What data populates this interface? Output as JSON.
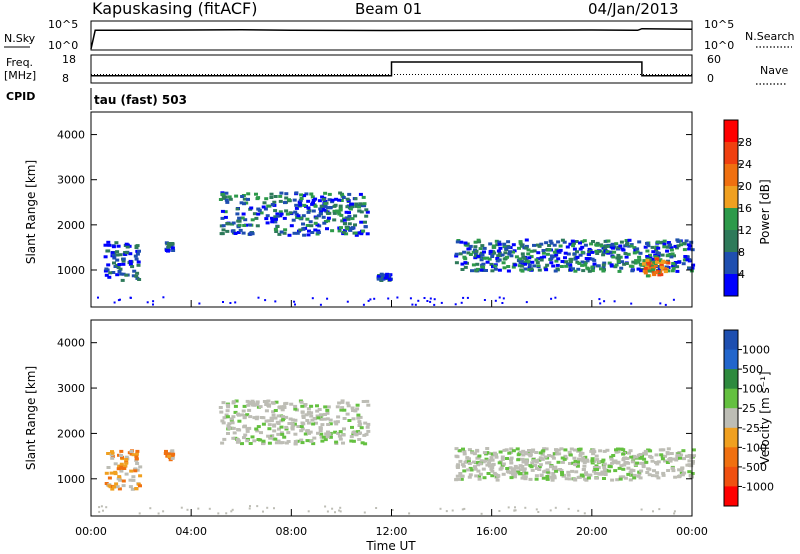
{
  "header": {
    "station": "Kapuskasing (fitACF)",
    "beam": "Beam 01",
    "date": "04/Jan/2013"
  },
  "noise_panel": {
    "left_label": "N.Sky",
    "left_ticks": [
      "10^5",
      "10^0"
    ],
    "right_ticks": [
      "10^5",
      "10^0"
    ],
    "right_label": "N.Search"
  },
  "freq_panel": {
    "left_label_1": "Freq.",
    "left_label_2": "[MHz]",
    "left_ticks": [
      "18",
      "8"
    ],
    "right_ticks": [
      "60",
      "0"
    ],
    "right_label": "Nave"
  },
  "cpid": {
    "label": "CPID",
    "mode": "tau (fast) 503"
  },
  "colors": {
    "power_scale": [
      "#0000ff",
      "#1f4fb0",
      "#2e7a5a",
      "#2d9a4a",
      "#f0a020",
      "#f07010",
      "#f04010",
      "#ff0000"
    ],
    "velocity_scale": [
      "#1e4fb0",
      "#2266cc",
      "#2e8a3e",
      "#64c040",
      "#bdbdb5",
      "#f0a020",
      "#f07010",
      "#f05010",
      "#ff0000"
    ]
  },
  "chart_data": [
    {
      "type": "line",
      "panel": "noise",
      "series": [
        {
          "name": "N.Sky",
          "x": [
            "00:00",
            "00:10",
            "04:00",
            "06:00",
            "08:00",
            "12:00",
            "16:00",
            "20:00",
            "21:50",
            "22:00",
            "24:00"
          ],
          "y_log10": [
            0,
            3.6,
            3.65,
            3.7,
            3.6,
            3.55,
            3.6,
            3.65,
            3.6,
            3.9,
            3.8
          ]
        },
        {
          "name": "N.Search",
          "x": [
            "00:00",
            "24:00"
          ],
          "y_log10": [
            0,
            0
          ]
        }
      ]
    },
    {
      "type": "line",
      "panel": "frequency",
      "series": [
        {
          "name": "Freq.",
          "x": [
            "00:00",
            "12:00",
            "12:00",
            "22:00",
            "22:00",
            "24:00"
          ],
          "y": [
            10.5,
            10.5,
            16,
            16,
            10.5,
            10.5
          ]
        },
        {
          "name": "Nave",
          "x": [
            "00:00",
            "24:00"
          ],
          "y": [
            18,
            18
          ]
        }
      ]
    },
    {
      "type": "heatmap",
      "panel": "power",
      "xlabel": "",
      "ylabel": "Slant Range [km]",
      "yticks": [
        1000,
        2000,
        3000,
        4000
      ],
      "ylim": [
        180,
        4500
      ],
      "colorbar_label": "Power [dB]",
      "colorbar_ticks": [
        "4",
        "8",
        "12",
        "16",
        "20",
        "24",
        "28"
      ],
      "xlim": [
        "00:00",
        "24:00"
      ],
      "echo_regions": [
        {
          "t0": 0.5,
          "t1": 1.9,
          "r0": 800,
          "r1": 1650,
          "level": "low"
        },
        {
          "t0": 2.9,
          "t1": 3.2,
          "r0": 1450,
          "r1": 1650,
          "level": "low"
        },
        {
          "t0": 5.1,
          "t1": 11.0,
          "r0": 1800,
          "r1": 2750,
          "level": "mid"
        },
        {
          "t0": 11.4,
          "t1": 11.9,
          "r0": 800,
          "r1": 950,
          "level": "low"
        },
        {
          "t0": 14.5,
          "t1": 24.0,
          "r0": 1000,
          "r1": 1700,
          "level": "mid"
        },
        {
          "t0": 22.0,
          "t1": 23.0,
          "r0": 900,
          "r1": 1300,
          "level": "high"
        }
      ]
    },
    {
      "type": "heatmap",
      "panel": "velocity",
      "xlabel": "Time UT",
      "ylabel": "Slant Range [km]",
      "yticks": [
        1000,
        2000,
        3000,
        4000
      ],
      "ylim": [
        180,
        4500
      ],
      "xticks": [
        "00:00",
        "04:00",
        "08:00",
        "12:00",
        "16:00",
        "20:00",
        "00:00"
      ],
      "colorbar_label": "Velocity [m s⁻¹]",
      "colorbar_ticks": [
        "1000",
        "500",
        "100",
        "25",
        "-25",
        "-100",
        "-500",
        "-1000"
      ],
      "echo_regions": [
        {
          "t0": 0.5,
          "t1": 1.9,
          "r0": 800,
          "r1": 1650,
          "v": "-100"
        },
        {
          "t0": 2.9,
          "t1": 3.2,
          "r0": 1450,
          "r1": 1650,
          "v": "-100"
        },
        {
          "t0": 5.1,
          "t1": 11.0,
          "r0": 1800,
          "r1": 2750,
          "v": "0"
        },
        {
          "t0": 14.5,
          "t1": 24.0,
          "r0": 1000,
          "r1": 1700,
          "v": "0"
        }
      ]
    }
  ]
}
